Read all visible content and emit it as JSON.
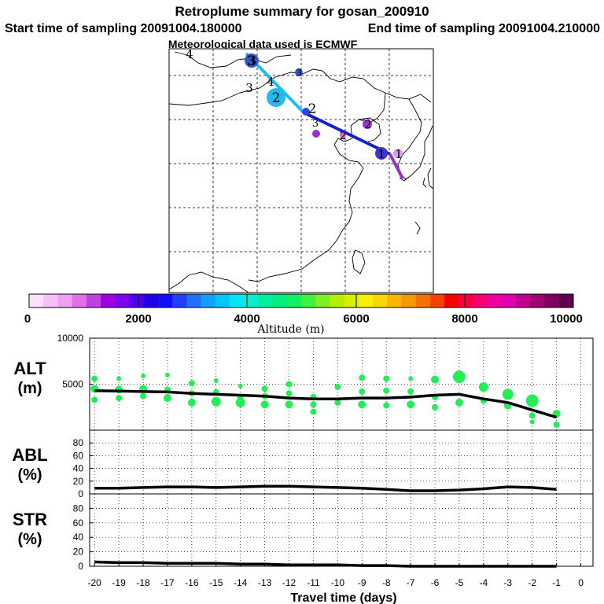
{
  "header": {
    "title": "Retroplume summary for gosan_200910",
    "start_label": "Start time of sampling 20091004.180000",
    "end_label": "End time of sampling 20091004.210000",
    "met_label": "Meteorological data used is ECMWF"
  },
  "map": {
    "plume_colors": {
      "path1": "#22bbee",
      "path2": "#1122cc",
      "path3": "#9933cc"
    },
    "markers": [
      {
        "label": "4",
        "color": "#1a3a8a",
        "big": false
      },
      {
        "label": "3",
        "color": "#1a3a8a",
        "big": false
      },
      {
        "label": "4",
        "color": "#1a3a8a",
        "big": false
      },
      {
        "label": "3",
        "color": "#3355cc",
        "big": true
      },
      {
        "label": "2",
        "color": "#22bbee",
        "big": true
      },
      {
        "label": "3",
        "color": "#3355cc",
        "big": false
      },
      {
        "label": "2",
        "color": "#3344dd",
        "big": false
      },
      {
        "label": "3",
        "color": "#9933cc",
        "big": false
      },
      {
        "label": "2",
        "color": "#cc66dd",
        "big": false
      },
      {
        "label": "2",
        "color": "#9933cc",
        "big": false
      },
      {
        "label": "1",
        "color": "#4433cc",
        "big": true
      },
      {
        "label": "1",
        "color": "#dd99ee",
        "big": false
      }
    ]
  },
  "colorbar": {
    "colors": [
      "#ffe0ff",
      "#f8c0f8",
      "#f0a0f0",
      "#e070e8",
      "#c040e0",
      "#a000e0",
      "#8000f0",
      "#5000f0",
      "#2000e8",
      "#1010ff",
      "#2040ff",
      "#2070ff",
      "#10a0ff",
      "#00c8ff",
      "#00e8f8",
      "#00f0d0",
      "#00f0a0",
      "#00f080",
      "#10f060",
      "#40f040",
      "#80f020",
      "#b0f000",
      "#d8f000",
      "#f8f000",
      "#f8d800",
      "#f8b800",
      "#f89800",
      "#f87000",
      "#f84000",
      "#f80000",
      "#f80040",
      "#f80070",
      "#f000a0",
      "#e000b0",
      "#c00090",
      "#a00070",
      "#800060",
      "#600050"
    ],
    "ticks": [
      "0",
      "2000",
      "4000",
      "6000",
      "8000",
      "10000"
    ],
    "label": "Altitude (m)"
  },
  "panels": {
    "alt_label": "ALT",
    "alt_unit": "(m)",
    "abl_label": "ABL",
    "abl_unit": "(%)",
    "str_label": "STR",
    "str_unit": "(%)",
    "xlabel": "Travel time (days)",
    "line_color": "#000000",
    "dot_color": "#22ee55"
  },
  "chart_data": {
    "type": "line",
    "x": [
      -20,
      -19,
      -18,
      -17,
      -16,
      -15,
      -14,
      -13,
      -12,
      -11,
      -10,
      -9,
      -8,
      -7,
      -6,
      -5,
      -4,
      -3,
      -2,
      -1
    ],
    "xlim": [
      -20.2,
      0.5
    ],
    "x_ticks": [
      "-20",
      "-19",
      "-18",
      "-17",
      "-16",
      "-15",
      "-14",
      "-13",
      "-12",
      "-11",
      "-10",
      "-9",
      "-8",
      "-7",
      "-6",
      "-5",
      "-4",
      "-3",
      "-2",
      "-1",
      "0"
    ],
    "xlabel": "Travel time (days)",
    "series": [
      {
        "name": "ALT",
        "ylabel": "ALT (m)",
        "ylim": [
          0,
          10000
        ],
        "y_ticks": [
          "5000",
          "10000"
        ],
        "values": [
          4300,
          4250,
          4200,
          4150,
          4000,
          3900,
          3800,
          3700,
          3500,
          3400,
          3400,
          3500,
          3500,
          3600,
          3800,
          3900,
          3400,
          3000,
          2200,
          1400
        ],
        "scatter": [
          [
            -20,
            5600,
            4
          ],
          [
            -20,
            4500,
            5
          ],
          [
            -20,
            3300,
            4
          ],
          [
            -19,
            5600,
            3
          ],
          [
            -19,
            4400,
            5
          ],
          [
            -19,
            3500,
            4
          ],
          [
            -18,
            5900,
            3
          ],
          [
            -18,
            4500,
            5
          ],
          [
            -18,
            3700,
            4
          ],
          [
            -17,
            6000,
            3
          ],
          [
            -17,
            4400,
            4
          ],
          [
            -17,
            3500,
            5
          ],
          [
            -16,
            5100,
            4
          ],
          [
            -16,
            4000,
            4
          ],
          [
            -16,
            3000,
            5
          ],
          [
            -15,
            5400,
            3
          ],
          [
            -15,
            4100,
            4
          ],
          [
            -15,
            3100,
            6
          ],
          [
            -14,
            4800,
            3
          ],
          [
            -14,
            3500,
            4
          ],
          [
            -14,
            3000,
            6
          ],
          [
            -13,
            4500,
            4
          ],
          [
            -13,
            3700,
            4
          ],
          [
            -13,
            2800,
            5
          ],
          [
            -12,
            5000,
            4
          ],
          [
            -12,
            4000,
            4
          ],
          [
            -12,
            2800,
            5
          ],
          [
            -11,
            3600,
            4
          ],
          [
            -11,
            2800,
            4
          ],
          [
            -11,
            2000,
            4
          ],
          [
            -10,
            4700,
            4
          ],
          [
            -10,
            3000,
            4
          ],
          [
            -9,
            5700,
            4
          ],
          [
            -9,
            4200,
            4
          ],
          [
            -9,
            2800,
            5
          ],
          [
            -8,
            5600,
            4
          ],
          [
            -8,
            4300,
            4
          ],
          [
            -8,
            2700,
            4
          ],
          [
            -7,
            5600,
            3
          ],
          [
            -7,
            4200,
            4
          ],
          [
            -7,
            2800,
            5
          ],
          [
            -6,
            5500,
            5
          ],
          [
            -6,
            3600,
            4
          ],
          [
            -6,
            2500,
            4
          ],
          [
            -5,
            5800,
            8
          ],
          [
            -5,
            3000,
            5
          ],
          [
            -4,
            4700,
            6
          ],
          [
            -4,
            3200,
            4
          ],
          [
            -3,
            3900,
            7
          ],
          [
            -3,
            2700,
            5
          ],
          [
            -2,
            3200,
            8
          ],
          [
            -2,
            1600,
            4
          ],
          [
            -2,
            900,
            3
          ],
          [
            -1,
            1800,
            5
          ],
          [
            -1,
            600,
            4
          ]
        ]
      },
      {
        "name": "ABL",
        "ylabel": "ABL (%)",
        "ylim": [
          0,
          100
        ],
        "y_ticks": [
          "0",
          "20",
          "40",
          "60",
          "80"
        ],
        "values": [
          9,
          9,
          10,
          11,
          11,
          10,
          11,
          12,
          12,
          11,
          10,
          9,
          7,
          5,
          5,
          6,
          8,
          11,
          10,
          7
        ]
      },
      {
        "name": "STR",
        "ylabel": "STR (%)",
        "ylim": [
          0,
          100
        ],
        "y_ticks": [
          "0",
          "20",
          "40",
          "60",
          "80"
        ],
        "values": [
          6,
          5,
          5,
          4,
          4,
          4,
          3,
          3,
          2,
          2,
          2,
          1,
          1,
          0,
          0,
          0,
          0,
          0,
          0,
          0
        ]
      }
    ]
  }
}
